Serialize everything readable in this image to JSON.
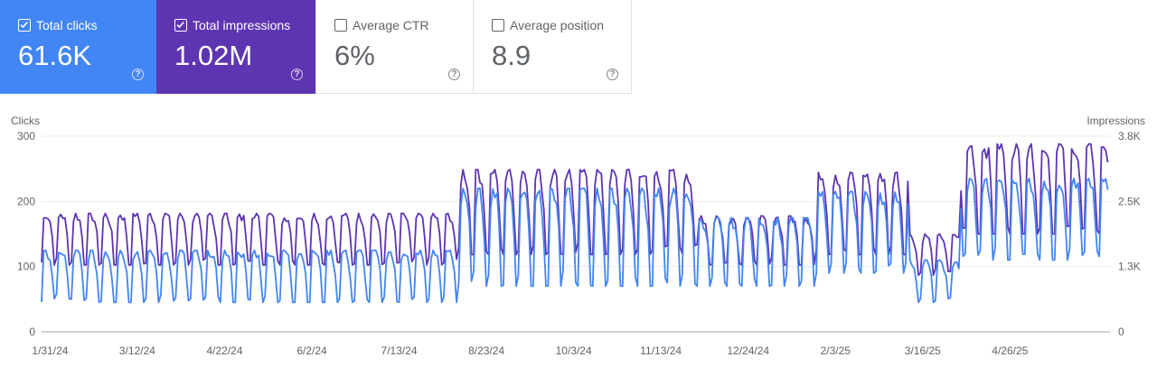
{
  "metrics": [
    {
      "label": "Total clicks",
      "value": "61.6K",
      "checked": true,
      "color": "#4285f4"
    },
    {
      "label": "Total impressions",
      "value": "1.02M",
      "checked": true,
      "color": "#5e35b1"
    },
    {
      "label": "Average CTR",
      "value": "6%",
      "checked": false
    },
    {
      "label": "Average position",
      "value": "8.9",
      "checked": false
    }
  ],
  "help_glyph": "?",
  "chart_data": {
    "type": "line",
    "ylabel_left": "Clicks",
    "ylabel_right": "Impressions",
    "y_left_ticks": [
      "300",
      "200",
      "100",
      "0"
    ],
    "y_left_range": [
      0,
      300
    ],
    "y_right_ticks": [
      "3.8K",
      "2.5K",
      "1.3K",
      "0"
    ],
    "y_right_range": [
      0,
      3800
    ],
    "x_ticks": [
      "1/31/24",
      "3/12/24",
      "4/22/24",
      "6/2/24",
      "7/13/24",
      "8/23/24",
      "10/3/24",
      "11/13/24",
      "12/24/24",
      "2/3/25",
      "3/16/25",
      "4/26/25"
    ],
    "x_range": [
      "2024-01-27",
      "2025-06-12"
    ],
    "grid": true,
    "series": [
      {
        "name": "Clicks",
        "axis": "left",
        "color": "#4285f4",
        "segments": [
          {
            "start": "2024-01-27",
            "end": "2024-08-10",
            "low": 45,
            "high": 125
          },
          {
            "start": "2024-08-10",
            "end": "2024-12-01",
            "low": 70,
            "high": 220
          },
          {
            "start": "2024-12-01",
            "end": "2025-01-25",
            "low": 70,
            "high": 175
          },
          {
            "start": "2025-01-25",
            "end": "2025-03-10",
            "low": 90,
            "high": 215
          },
          {
            "start": "2025-03-10",
            "end": "2025-04-03",
            "low": 45,
            "high": 110
          },
          {
            "start": "2025-04-03",
            "end": "2025-06-12",
            "low": 110,
            "high": 235
          }
        ]
      },
      {
        "name": "Impressions",
        "axis": "right",
        "color": "#5e35b1",
        "segments": [
          {
            "start": "2024-01-27",
            "end": "2024-08-10",
            "low": 1300,
            "high": 2300
          },
          {
            "start": "2024-08-10",
            "end": "2024-12-01",
            "low": 1500,
            "high": 3150
          },
          {
            "start": "2024-12-01",
            "end": "2025-01-25",
            "low": 1300,
            "high": 2250
          },
          {
            "start": "2025-01-25",
            "end": "2025-03-10",
            "low": 1500,
            "high": 3100
          },
          {
            "start": "2025-03-10",
            "end": "2025-04-03",
            "low": 1100,
            "high": 1900
          },
          {
            "start": "2025-04-03",
            "end": "2025-06-12",
            "low": 1900,
            "high": 3650
          }
        ]
      }
    ]
  }
}
